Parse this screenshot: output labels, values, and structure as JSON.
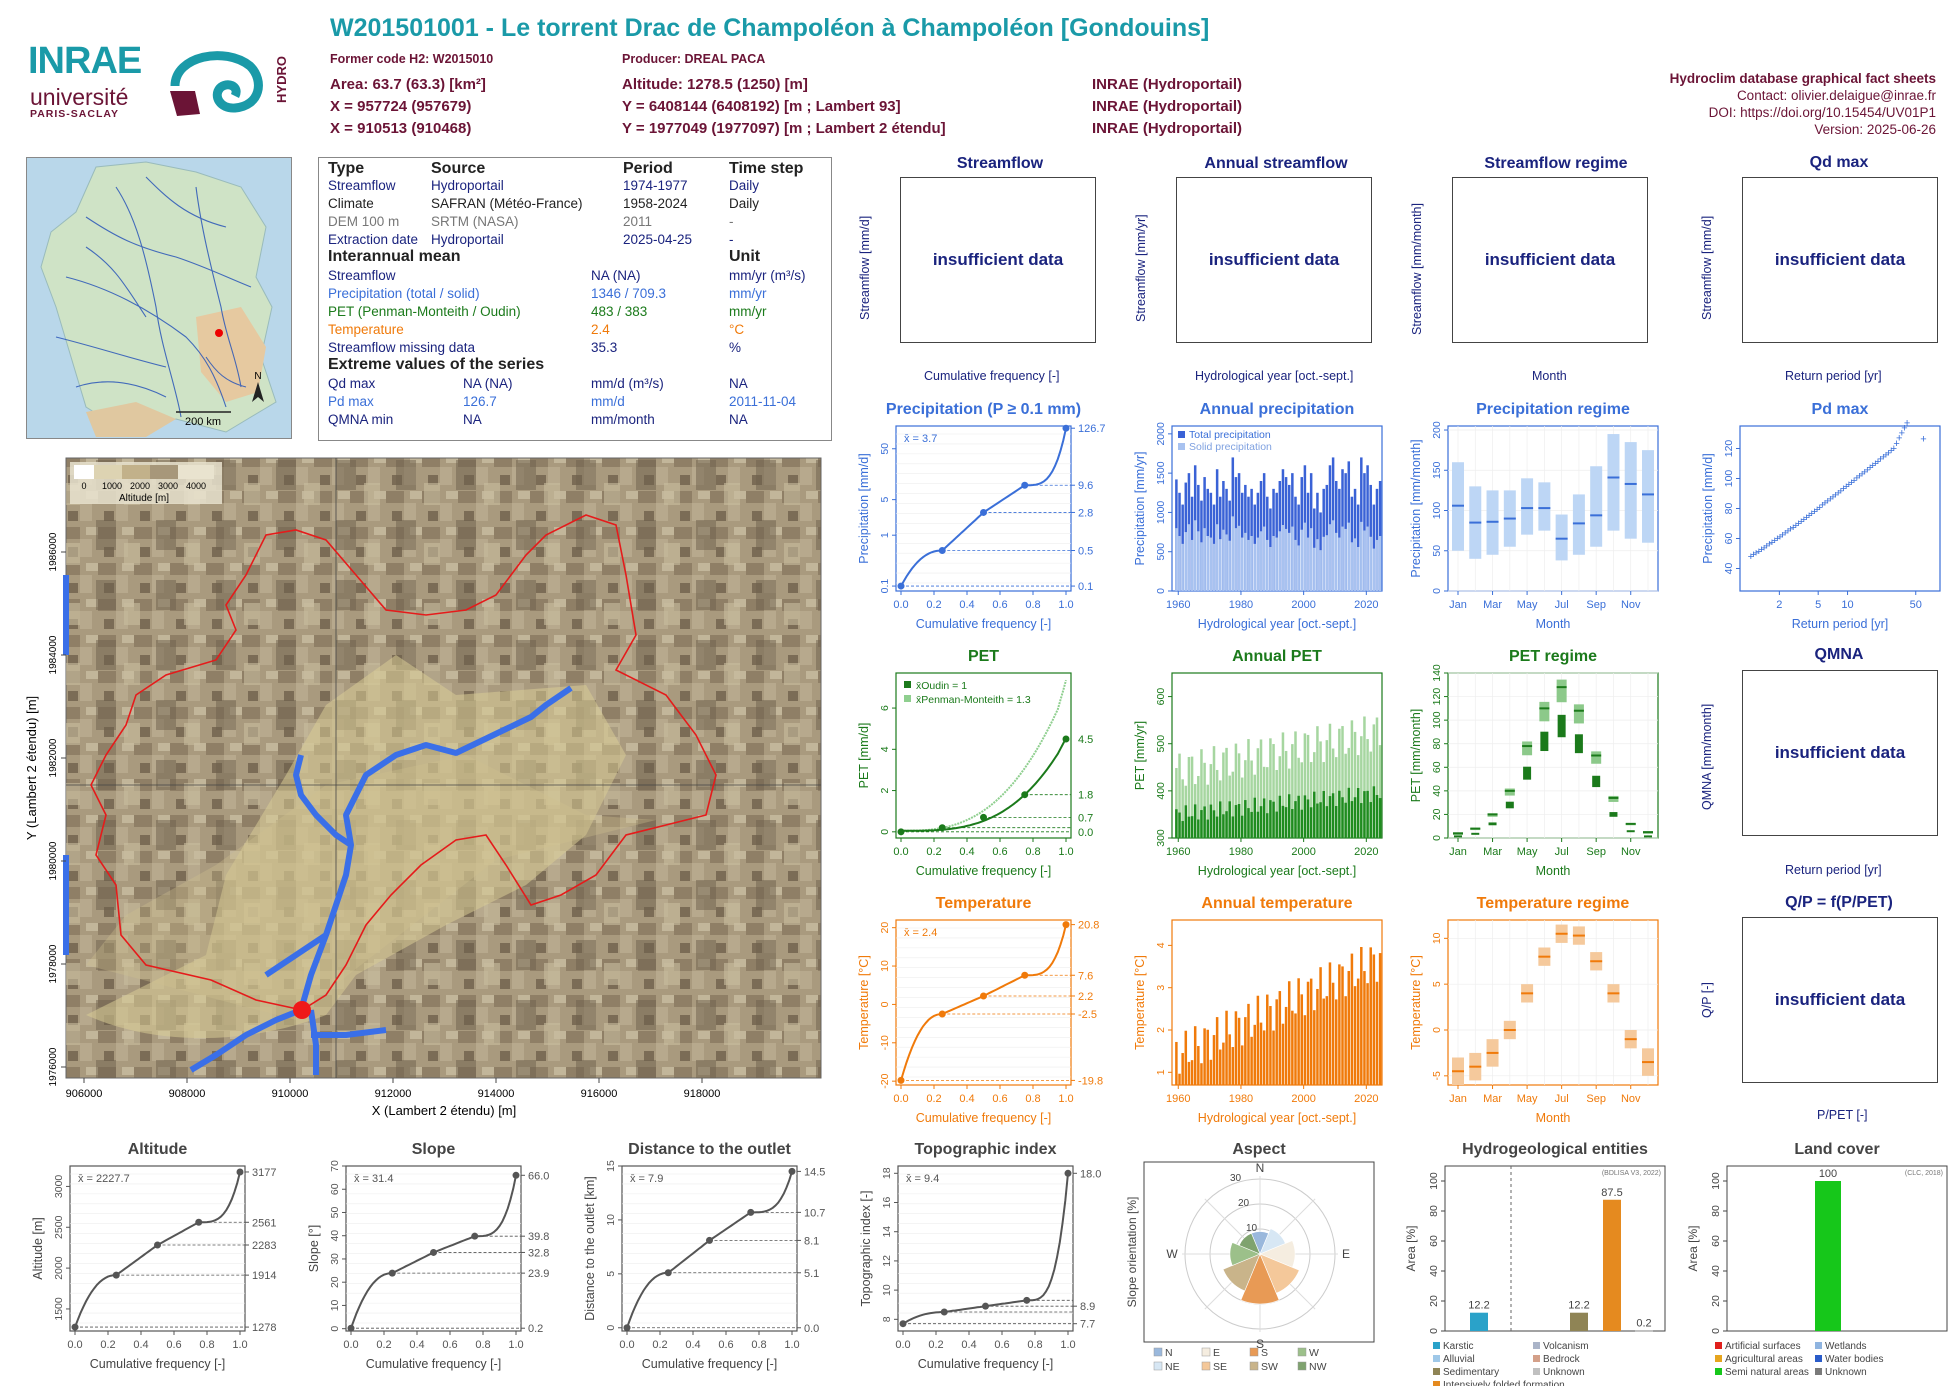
{
  "header": {
    "title": "W201501001 - Le torrent Drac de Champoléon à Champoléon [Gondouins]",
    "former_code": "Former code H2: W2015010",
    "producer": "Producer: DREAL PACA",
    "area": "Area: 63.7 (63.3) [km²]",
    "x93": "X = 957724 (957679)",
    "x2e": "X = 910513 (910468)",
    "altitude": "Altitude: 1278.5 (1250) [m]",
    "y93": "Y = 6408144 (6408192) [m ; Lambert 93]",
    "y2e": "Y = 1977049 (1977097) [m ; Lambert 2 étendu]",
    "src1": "INRAE (Hydroportail)",
    "src2": "INRAE (Hydroportail)",
    "src3": "INRAE (Hydroportail)"
  },
  "logos": {
    "inrae": "INRAE",
    "universite": "université",
    "paris_saclay": "PARIS-SACLAY",
    "hydro": "HYDRO"
  },
  "info": {
    "title": "Hydroclim database graphical fact sheets",
    "contact": "Contact: olivier.delaigue@inrae.fr",
    "doi": "DOI: https://doi.org/10.15454/UV01P1",
    "version": "Version: 2025-06-26"
  },
  "minimap": {
    "scale": "200 km",
    "north": "N"
  },
  "meta_table": {
    "h_type": "Type",
    "h_source": "Source",
    "h_period": "Period",
    "h_timestep": "Time step",
    "rows": [
      {
        "type": "Streamflow",
        "source": "Hydroportail",
        "period": "1974-1977",
        "step": "Daily"
      },
      {
        "type": "Climate",
        "source": "SAFRAN (Météo-France)",
        "period": "1958-2024",
        "step": "Daily"
      },
      {
        "type": "DEM 100 m",
        "source": "SRTM (NASA)",
        "period": "2011",
        "step": "-"
      },
      {
        "type": "Extraction date",
        "source": "Hydroportail",
        "period": "2025-04-25",
        "step": "-"
      }
    ],
    "h_interannual": "Interannual mean",
    "h_unit": "Unit",
    "mean_rows": [
      {
        "name": "Streamflow",
        "value": "NA (NA)",
        "unit": "mm/yr (m³/s)"
      },
      {
        "name": "Precipitation (total / solid)",
        "value": "1346 / 709.3",
        "unit": "mm/yr"
      },
      {
        "name": "PET (Penman-Monteith / Oudin)",
        "value": "483 / 383",
        "unit": "mm/yr"
      },
      {
        "name": "Temperature",
        "value": "2.4",
        "unit": "°C"
      },
      {
        "name": "Streamflow missing data",
        "value": "35.3",
        "unit": "%"
      }
    ],
    "h_extreme": "Extreme values of the series",
    "ext_rows": [
      {
        "name": "Qd max",
        "value": "NA (NA)",
        "unit": "mm/d (m³/s)",
        "date": "NA"
      },
      {
        "name": "Pd max",
        "value": "126.7",
        "unit": "mm/d",
        "date": "2011-11-04"
      },
      {
        "name": "QMNA min",
        "value": "NA",
        "unit": "mm/month",
        "date": "NA"
      }
    ]
  },
  "catchment_map": {
    "xlabel": "X (Lambert 2 étendu) [m]",
    "ylabel": "Y (Lambert 2 étendu) [m]",
    "xticks": [
      "906000",
      "908000",
      "910000",
      "912000",
      "914000",
      "916000",
      "918000"
    ],
    "yticks": [
      "1976000",
      "1978000",
      "1980000",
      "1982000",
      "1984000",
      "1986000"
    ],
    "legend_title": "Altitude [m]",
    "legend_ticks": [
      "0",
      "1000",
      "2000",
      "3000",
      "4000"
    ]
  },
  "panels": {
    "streamflow": {
      "title": "Streamflow",
      "ylabel": "Streamflow [mm/d]",
      "xlabel": "Cumulative frequency [-]",
      "msg": "insufficient data"
    },
    "annual_streamflow": {
      "title": "Annual streamflow",
      "ylabel": "Streamflow [mm/yr]",
      "xlabel": "Hydrological year [oct.-sept.]",
      "msg": "insufficient data"
    },
    "streamflow_regime": {
      "title": "Streamflow regime",
      "ylabel": "Streamflow [mm/month]",
      "xlabel": "Month",
      "msg": "insufficient data"
    },
    "qd_max": {
      "title": "Qd max",
      "ylabel": "Streamflow [mm/d]",
      "xlabel": "Return period [yr]",
      "msg": "insufficient data"
    },
    "qmna": {
      "title": "QMNA",
      "ylabel": "QMNA [mm/month]",
      "xlabel": "Return period [yr]",
      "msg": "insufficient data"
    },
    "qp": {
      "title": "Q/P = f(P/PET)",
      "ylabel": "Q/P [-]",
      "xlabel": "P/PET [-]",
      "msg": "insufficient data"
    }
  },
  "chart_data": [
    {
      "id": "precip_cdf",
      "type": "line",
      "title": "Precipitation (P ≥ 0.1 mm)",
      "xlabel": "Cumulative frequency [-]",
      "ylabel": "Precipitation [mm/d]",
      "mean_label": "x̄ = 3.7",
      "scale": "log",
      "x": [
        0,
        0.25,
        0.5,
        0.75,
        1.0
      ],
      "y": [
        0.1,
        0.5,
        2.8,
        9.6,
        126.7
      ],
      "right_labels": [
        "126.7",
        "9.6",
        "2.8",
        "0.5",
        "0.1"
      ],
      "yticks": [
        "0.1",
        "1",
        "5",
        "50"
      ],
      "xticks": [
        "0.0",
        "0.2",
        "0.4",
        "0.6",
        "0.8",
        "1.0"
      ],
      "color": "#3a6fd8"
    },
    {
      "id": "annual_precip",
      "type": "bar",
      "title": "Annual precipitation",
      "xlabel": "Hydrological year [oct.-sept.]",
      "ylabel": "Precipitation [mm/yr]",
      "ylim": [
        0,
        2100
      ],
      "legend": [
        "Total precipitation",
        "Solid precipitation"
      ],
      "xticks": [
        "1960",
        "1980",
        "2000",
        "2020"
      ],
      "yticks": [
        "0",
        "500",
        "1000",
        "1500",
        "2000"
      ],
      "x": [
        1959,
        1960,
        1961,
        1962,
        1963,
        1964,
        1965,
        1966,
        1967,
        1968,
        1969,
        1970,
        1971,
        1972,
        1973,
        1974,
        1975,
        1976,
        1977,
        1978,
        1979,
        1980,
        1981,
        1982,
        1983,
        1984,
        1985,
        1986,
        1987,
        1988,
        1989,
        1990,
        1991,
        1992,
        1993,
        1994,
        1995,
        1996,
        1997,
        1998,
        1999,
        2000,
        2001,
        2002,
        2003,
        2004,
        2005,
        2006,
        2007,
        2008,
        2009,
        2010,
        2011,
        2012,
        2013,
        2014,
        2015,
        2016,
        2017,
        2018,
        2019,
        2020,
        2021,
        2022,
        2023,
        2024
      ],
      "total": [
        1420,
        1250,
        1100,
        1380,
        1500,
        1200,
        1600,
        1350,
        1150,
        1450,
        1300,
        1250,
        1100,
        1550,
        1200,
        1400,
        1300,
        1150,
        1700,
        1450,
        1500,
        1250,
        1350,
        1200,
        1300,
        1100,
        1250,
        1400,
        1500,
        1200,
        1050,
        1300,
        1250,
        1400,
        1550,
        1450,
        1350,
        1500,
        1200,
        1100,
        1450,
        1600,
        1250,
        1500,
        1050,
        1250,
        1000,
        1300,
        1350,
        1600,
        1700,
        1400,
        1300,
        1550,
        1500,
        1650,
        1200,
        1300,
        1100,
        1700,
        1500,
        1600,
        1350,
        1100,
        1300,
        1400
      ],
      "solid": [
        800,
        700,
        600,
        750,
        850,
        650,
        900,
        760,
        620,
        800,
        700,
        680,
        600,
        850,
        660,
        780,
        720,
        640,
        950,
        800,
        830,
        680,
        740,
        650,
        700,
        600,
        680,
        760,
        820,
        650,
        560,
        700,
        680,
        760,
        840,
        790,
        740,
        820,
        650,
        580,
        780,
        870,
        680,
        800,
        550,
        660,
        520,
        690,
        710,
        850,
        900,
        740,
        680,
        820,
        790,
        870,
        620,
        670,
        560,
        880,
        770,
        820,
        690,
        540,
        650,
        700
      ]
    },
    {
      "id": "precip_regime",
      "type": "box",
      "title": "Precipitation regime",
      "xlabel": "Month",
      "ylabel": "Precipitation [mm/month]",
      "ylim": [
        0,
        205
      ],
      "categories": [
        "Jan",
        "Feb",
        "Mar",
        "Apr",
        "May",
        "Jun",
        "Jul",
        "Aug",
        "Sep",
        "Oct",
        "Nov",
        "Dec"
      ],
      "xticks": [
        "Jan",
        "Mar",
        "May",
        "Jul",
        "Sep",
        "Nov"
      ],
      "yticks": [
        "0",
        "50",
        "100",
        "150",
        "200"
      ],
      "median": [
        106,
        85,
        86,
        90,
        103,
        103,
        65,
        84,
        94,
        141,
        133,
        120
      ],
      "q_low": [
        50,
        40,
        45,
        55,
        70,
        75,
        38,
        45,
        55,
        75,
        65,
        60
      ],
      "q_high": [
        160,
        130,
        125,
        125,
        140,
        135,
        95,
        120,
        155,
        195,
        185,
        175
      ]
    },
    {
      "id": "pd_max",
      "type": "scatter",
      "title": "Pd max",
      "xlabel": "Return period [yr]",
      "ylabel": "Precipitation [mm/d]",
      "xticks": [
        "2",
        "5",
        "10",
        "50"
      ],
      "yticks": [
        "40",
        "60",
        "80",
        "100",
        "120"
      ]
    },
    {
      "id": "pet_cdf",
      "type": "line",
      "title": "PET",
      "xlabel": "Cumulative frequency [-]",
      "ylabel": "PET [mm/d]",
      "mean_labels": [
        "x̄Oudin = 1",
        "x̄Penman-Monteith = 1.3"
      ],
      "x": [
        0,
        0.25,
        0.5,
        0.75,
        1.0
      ],
      "y_oudin": [
        0.0,
        0.2,
        0.7,
        1.8,
        4.5
      ],
      "right_labels": [
        "4.5",
        "1.8",
        "0.7",
        "0.0"
      ],
      "yticks": [
        "0",
        "2",
        "4",
        "6"
      ],
      "xticks": [
        "0.0",
        "0.2",
        "0.4",
        "0.6",
        "0.8",
        "1.0"
      ],
      "color": "#1b7a1b"
    },
    {
      "id": "annual_pet",
      "type": "bar",
      "title": "Annual PET",
      "xlabel": "Hydrological year [oct.-sept.]",
      "ylabel": "PET [mm/yr]",
      "ylim": [
        300,
        650
      ],
      "xticks": [
        "1960",
        "1980",
        "2000",
        "2020"
      ],
      "yticks": [
        "300",
        "400",
        "500",
        "600"
      ]
    },
    {
      "id": "pet_regime",
      "type": "box",
      "title": "PET regime",
      "xlabel": "Month",
      "ylabel": "PET [mm/month]",
      "ylim": [
        0,
        140
      ],
      "categories": [
        "Jan",
        "Feb",
        "Mar",
        "Apr",
        "May",
        "Jun",
        "Jul",
        "Aug",
        "Sep",
        "Oct",
        "Nov",
        "Dec"
      ],
      "xticks": [
        "Jan",
        "Mar",
        "May",
        "Jul",
        "Sep",
        "Nov"
      ],
      "yticks": [
        "0",
        "20",
        "40",
        "60",
        "80",
        "100",
        "120",
        "140"
      ],
      "oudin": [
        2,
        4,
        12,
        28,
        55,
        82,
        95,
        80,
        48,
        20,
        6,
        2
      ],
      "penman": [
        4,
        8,
        20,
        40,
        78,
        110,
        128,
        108,
        70,
        34,
        12,
        5
      ]
    },
    {
      "id": "temp_cdf",
      "type": "line",
      "title": "Temperature",
      "xlabel": "Cumulative frequency [-]",
      "ylabel": "Temperature [°C]",
      "mean_label": "x̄ = 2.4",
      "x": [
        0,
        0.25,
        0.5,
        0.75,
        1.0
      ],
      "y": [
        -19.8,
        -2.5,
        2.2,
        7.6,
        20.8
      ],
      "right_labels": [
        "20.8",
        "7.6",
        "2.2",
        "-2.5",
        "-19.8"
      ],
      "yticks": [
        "-20",
        "-10",
        "0",
        "10",
        "20"
      ],
      "xticks": [
        "0.0",
        "0.2",
        "0.4",
        "0.6",
        "0.8",
        "1.0"
      ],
      "color": "#f07a0a"
    },
    {
      "id": "annual_temp",
      "type": "bar",
      "title": "Annual temperature",
      "xlabel": "Hydrological year [oct.-sept.]",
      "ylabel": "Temperature [°C]",
      "ylim": [
        0.7,
        4.6
      ],
      "xticks": [
        "1960",
        "1980",
        "2000",
        "2020"
      ],
      "yticks": [
        "1",
        "2",
        "3",
        "4"
      ]
    },
    {
      "id": "temp_regime",
      "type": "box",
      "title": "Temperature regime",
      "xlabel": "Month",
      "ylabel": "Temperature [°C]",
      "ylim": [
        -6,
        12
      ],
      "categories": [
        "Jan",
        "Feb",
        "Mar",
        "Apr",
        "May",
        "Jun",
        "Jul",
        "Aug",
        "Sep",
        "Oct",
        "Nov",
        "Dec"
      ],
      "xticks": [
        "Jan",
        "Mar",
        "May",
        "Jul",
        "Sep",
        "Nov"
      ],
      "yticks": [
        "-5",
        "0",
        "5",
        "10"
      ],
      "median": [
        -4.5,
        -4,
        -2.5,
        0,
        4,
        8,
        10.5,
        10.3,
        7.5,
        4,
        -1,
        -3.5
      ],
      "q_low": [
        -6,
        -5.5,
        -4,
        -1,
        3,
        7,
        9.5,
        9.3,
        6.5,
        3,
        -2,
        -5
      ],
      "q_high": [
        -3,
        -2.5,
        -1,
        1,
        5,
        9,
        11.5,
        11.3,
        8.5,
        5,
        0,
        -2
      ]
    },
    {
      "id": "altitude_cdf",
      "type": "line",
      "title": "Altitude",
      "xlabel": "Cumulative frequency [-]",
      "ylabel": "Altitude [m]",
      "mean_label": "x̄ = 2227.7",
      "x": [
        0,
        0.25,
        0.5,
        0.75,
        1.0
      ],
      "y": [
        1278,
        1914,
        2283,
        2561,
        3177
      ],
      "right_labels": [
        "3177",
        "2561",
        "2283",
        "1914",
        "1278"
      ],
      "yticks": [
        "1500",
        "2000",
        "2500",
        "3000"
      ],
      "xticks": [
        "0.0",
        "0.2",
        "0.4",
        "0.6",
        "0.8",
        "1.0"
      ]
    },
    {
      "id": "slope_cdf",
      "type": "line",
      "title": "Slope",
      "xlabel": "Cumulative frequency [-]",
      "ylabel": "Slope [°]",
      "mean_label": "x̄ = 31.4",
      "x": [
        0,
        0.25,
        0.5,
        0.75,
        1.0
      ],
      "y": [
        0.2,
        23.9,
        32.8,
        39.8,
        66.0
      ],
      "right_labels": [
        "66.0",
        "39.8",
        "32.8",
        "23.9",
        "0.2"
      ],
      "yticks": [
        "0",
        "10",
        "20",
        "30",
        "40",
        "50",
        "60",
        "70"
      ],
      "xticks": [
        "0.0",
        "0.2",
        "0.4",
        "0.6",
        "0.8",
        "1.0"
      ]
    },
    {
      "id": "distance_cdf",
      "type": "line",
      "title": "Distance to the outlet",
      "xlabel": "Cumulative frequency [-]",
      "ylabel": "Distance to the outlet [km]",
      "mean_label": "x̄ = 7.9",
      "x": [
        0,
        0.25,
        0.5,
        0.75,
        1.0
      ],
      "y": [
        0.0,
        5.1,
        8.1,
        10.7,
        14.5
      ],
      "right_labels": [
        "14.5",
        "10.7",
        "8.1",
        "5.1",
        "0.0"
      ],
      "yticks": [
        "0",
        "5",
        "10",
        "15"
      ],
      "xticks": [
        "0.0",
        "0.2",
        "0.4",
        "0.6",
        "0.8",
        "1.0"
      ]
    },
    {
      "id": "topo_cdf",
      "type": "line",
      "title": "Topographic index",
      "xlabel": "Cumulative frequency [-]",
      "ylabel": "Topographic index [-]",
      "mean_label": "x̄ = 9.4",
      "x": [
        0,
        0.25,
        0.5,
        0.75,
        1.0
      ],
      "y": [
        7.7,
        8.5,
        8.9,
        9.3,
        18.0
      ],
      "right_labels": [
        "18.0",
        "8.9",
        "7.7"
      ],
      "yticks": [
        "8",
        "10",
        "12",
        "14",
        "16",
        "18"
      ],
      "xticks": [
        "0.0",
        "0.2",
        "0.4",
        "0.6",
        "0.8",
        "1.0"
      ]
    },
    {
      "id": "aspect",
      "type": "pie",
      "title": "Aspect",
      "ylabel": "Slope orientation [%]",
      "directions": [
        "N",
        "NE",
        "E",
        "SE",
        "S",
        "SW",
        "W",
        "NW"
      ],
      "values": [
        9,
        11,
        14,
        17,
        20,
        16,
        12,
        9
      ],
      "colors": [
        "#9ab8dc",
        "#d7e7f4",
        "#f5ede0",
        "#f4c89a",
        "#e89a55",
        "#c9b48a",
        "#9cc08a",
        "#7fa36f"
      ],
      "rings": [
        "10",
        "20",
        "30"
      ]
    },
    {
      "id": "hydrogeo",
      "type": "bar",
      "title": "Hydrogeological entities",
      "note": "(BDLISA V3, 2022)",
      "ylabel": "Area [%]",
      "ylim": [
        0,
        110
      ],
      "yticks": [
        "0",
        "20",
        "40",
        "60",
        "80",
        "100"
      ],
      "bars": [
        {
          "label": "12.2",
          "value": 12.2,
          "color": "#2aa2c9"
        },
        {
          "label": "12.2",
          "value": 12.2,
          "color": "#8f8455"
        },
        {
          "label": "87.5",
          "value": 87.5,
          "color": "#e58a1f"
        },
        {
          "label": "0.2",
          "value": 0.2,
          "color": "#aaaaaa"
        }
      ],
      "legend": [
        {
          "name": "Karstic",
          "color": "#2aa2c9"
        },
        {
          "name": "Volcanism",
          "color": "#aab4c8"
        },
        {
          "name": "Alluvial",
          "color": "#9fc8e8"
        },
        {
          "name": "Bedrock",
          "color": "#d4a089"
        },
        {
          "name": "Sedimentary",
          "color": "#8f8455"
        },
        {
          "name": "Unknown",
          "color": "#c0c0c0"
        },
        {
          "name": "Intensively folded formation",
          "color": "#e58a1f"
        }
      ]
    },
    {
      "id": "landcover",
      "type": "bar",
      "title": "Land cover",
      "note": "(CLC, 2018)",
      "ylabel": "Area [%]",
      "ylim": [
        0,
        110
      ],
      "yticks": [
        "0",
        "20",
        "40",
        "60",
        "80",
        "100"
      ],
      "bars": [
        {
          "label": "100",
          "value": 100,
          "color": "#16c71a"
        }
      ],
      "legend": [
        {
          "name": "Artificial surfaces",
          "color": "#e0201c"
        },
        {
          "name": "Wetlands",
          "color": "#8fb4e0"
        },
        {
          "name": "Agricultural areas",
          "color": "#e6a51e"
        },
        {
          "name": "Water bodies",
          "color": "#2a5cc9"
        },
        {
          "name": "Semi natural areas",
          "color": "#16c71a"
        },
        {
          "name": "Unknown",
          "color": "#7a7a7a"
        }
      ]
    }
  ]
}
